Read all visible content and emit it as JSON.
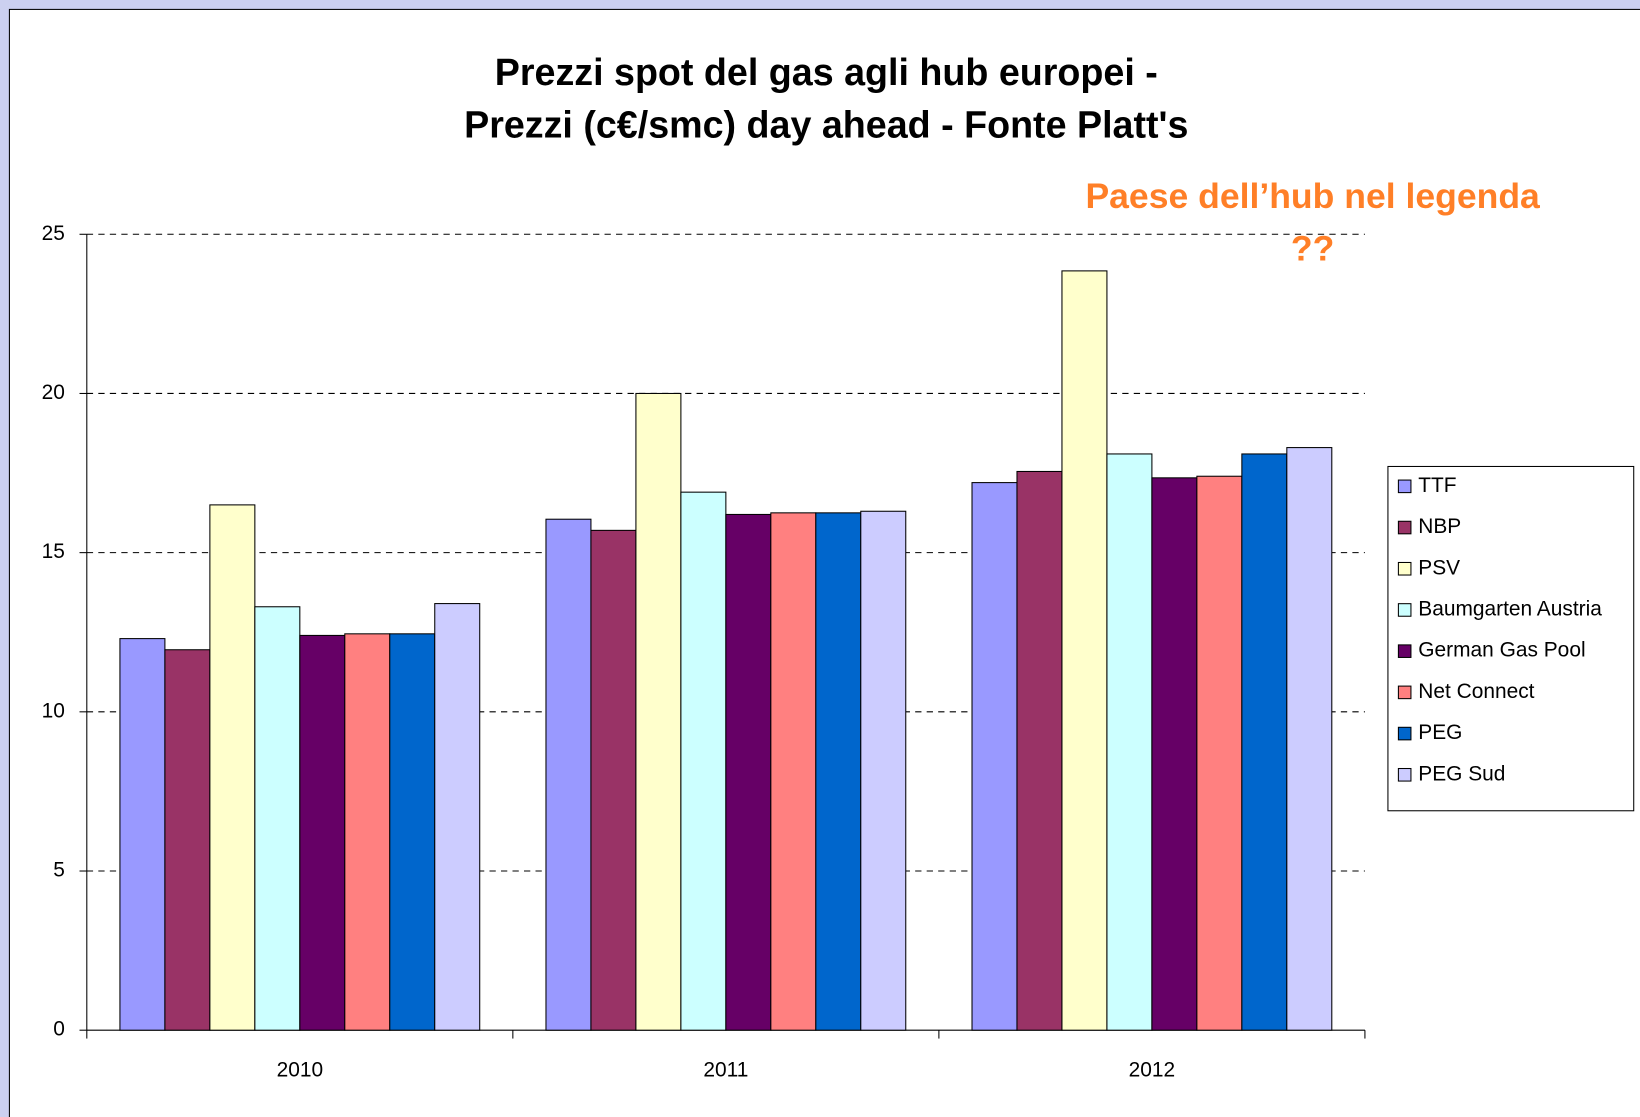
{
  "chart_data": {
    "type": "bar",
    "title": [
      "Prezzi spot del gas agli hub europei -",
      "Prezzi (c€/smc) day ahead - Fonte Platt's"
    ],
    "annotation": [
      "Paese dell’hub nel legenda",
      "??"
    ],
    "categories": [
      "2010",
      "2011",
      "2012"
    ],
    "series": [
      {
        "name": "TTF",
        "color": "#9999ff",
        "values": [
          12.3,
          16.05,
          17.2
        ]
      },
      {
        "name": "NBP",
        "color": "#993366",
        "values": [
          11.95,
          15.7,
          17.55
        ]
      },
      {
        "name": "PSV",
        "color": "#ffffcc",
        "values": [
          16.5,
          20,
          23.85
        ]
      },
      {
        "name": "Baumgarten Austria",
        "color": "#ccffff",
        "values": [
          13.3,
          16.9,
          18.1
        ]
      },
      {
        "name": "German Gas Pool",
        "color": "#660066",
        "values": [
          12.4,
          16.2,
          17.35
        ]
      },
      {
        "name": "Net Connect",
        "color": "#ff8080",
        "values": [
          12.45,
          16.25,
          17.4
        ]
      },
      {
        "name": "PEG",
        "color": "#0066cc",
        "values": [
          12.45,
          16.25,
          18.1
        ]
      },
      {
        "name": "PEG Sud",
        "color": "#ccccff",
        "values": [
          13.4,
          16.3,
          18.3
        ]
      }
    ],
    "ylim": [
      0,
      25
    ],
    "yticks": [
      0,
      5,
      10,
      15,
      20,
      25
    ],
    "grid": true,
    "legend": "right"
  }
}
